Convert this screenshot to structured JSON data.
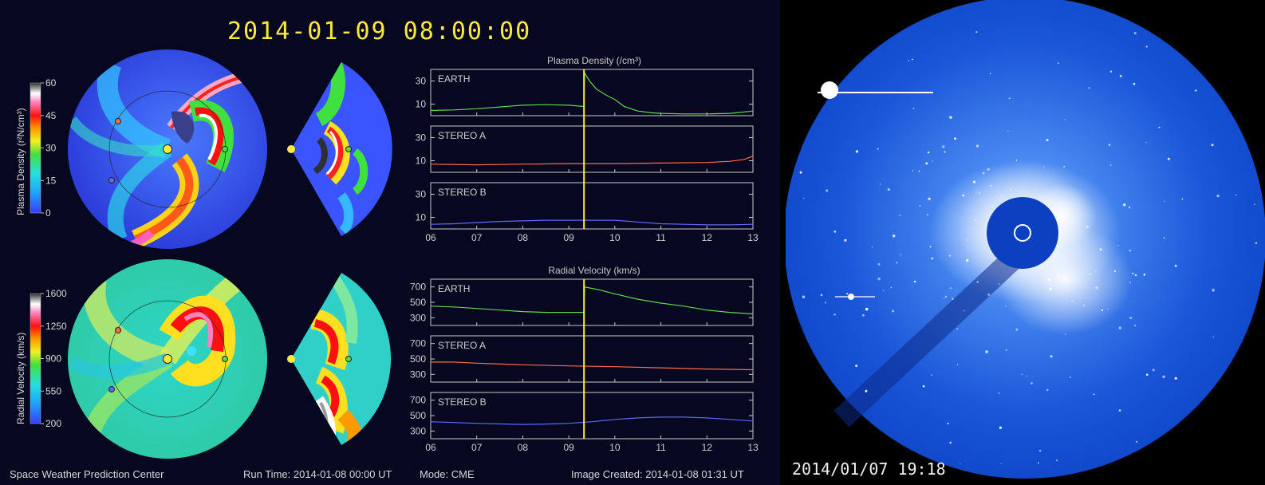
{
  "header": {
    "timestamp": "2014-01-09  08:00:00"
  },
  "footer": {
    "center": "Space Weather Prediction Center",
    "run_time": "Run Time: 2014-01-08 00:00 UT",
    "mode": "Mode: CME",
    "image_created": "Image Created: 2014-01-08 01:31 UT"
  },
  "colorbars": {
    "density": {
      "label": "Plasma Density (r²N/cm³)",
      "ticks": [
        "60",
        "45",
        "30",
        "15",
        "0"
      ]
    },
    "velocity": {
      "label": "Radial Velocity (km/s)",
      "ticks": [
        "1600",
        "1250",
        "900",
        "550",
        "200"
      ]
    }
  },
  "lasco": {
    "timestamp": "2014/01/07  19:18"
  },
  "colors": {
    "earth": "#63d64d",
    "stereo_a": "#ff6a4d",
    "stereo_b": "#6266ff",
    "marker": "#ffea3c"
  },
  "chart_data": [
    {
      "type": "line",
      "title": "Plasma Density (/cm³)",
      "x_ticks": [
        "06",
        "07",
        "08",
        "09",
        "10",
        "11",
        "12",
        "13"
      ],
      "xlim": [
        6,
        13
      ],
      "current_time_marker": 9.33,
      "panels": [
        {
          "name": "EARTH",
          "color": "#63d64d",
          "ylim": [
            0,
            40
          ],
          "y_ticks": [
            10,
            30
          ],
          "x": [
            6.0,
            6.5,
            7.0,
            7.5,
            8.0,
            8.5,
            9.0,
            9.3,
            9.33,
            9.34,
            9.45,
            9.6,
            9.8,
            10.0,
            10.2,
            10.5,
            10.8,
            11.0,
            11.5,
            12.0,
            12.5,
            13.0
          ],
          "y": [
            4.5,
            5,
            6,
            7.5,
            9,
            9.5,
            9,
            8,
            8,
            37,
            30,
            23,
            18,
            14,
            8,
            4,
            2.5,
            2,
            1.5,
            1.5,
            2,
            4
          ]
        },
        {
          "name": "STEREO A",
          "color": "#ff6a4d",
          "ylim": [
            0,
            40
          ],
          "y_ticks": [
            10,
            30
          ],
          "x": [
            6.0,
            7.0,
            8.0,
            9.0,
            10.0,
            11.0,
            12.0,
            12.5,
            12.8,
            13.0
          ],
          "y": [
            7,
            6.5,
            7,
            7.5,
            7.5,
            8,
            8.5,
            9.5,
            11,
            14
          ]
        },
        {
          "name": "STEREO B",
          "color": "#6266ff",
          "ylim": [
            0,
            40
          ],
          "y_ticks": [
            10,
            30
          ],
          "x": [
            6.0,
            6.5,
            7.0,
            7.5,
            8.0,
            8.5,
            9.0,
            9.5,
            10.0,
            10.5,
            11.0,
            11.5,
            12.0,
            12.5,
            13.0
          ],
          "y": [
            4,
            4.5,
            5.5,
            6.5,
            7,
            7.5,
            7.5,
            7.5,
            7.5,
            6,
            4.5,
            4,
            3.5,
            3.5,
            4
          ]
        }
      ]
    },
    {
      "type": "line",
      "title": "Radial Velocity (km/s)",
      "x_ticks": [
        "06",
        "07",
        "08",
        "09",
        "10",
        "11",
        "12",
        "13"
      ],
      "xlim": [
        6,
        13
      ],
      "current_time_marker": 9.33,
      "panels": [
        {
          "name": "EARTH",
          "color": "#63d64d",
          "ylim": [
            200,
            800
          ],
          "y_ticks": [
            300,
            500,
            700
          ],
          "x": [
            6.0,
            6.5,
            7.0,
            7.5,
            8.0,
            8.5,
            9.0,
            9.3,
            9.33,
            9.34,
            9.6,
            10.0,
            10.5,
            11.0,
            11.5,
            12.0,
            12.5,
            13.0
          ],
          "y": [
            450,
            440,
            420,
            400,
            380,
            370,
            370,
            370,
            370,
            700,
            670,
            610,
            540,
            490,
            450,
            400,
            370,
            350
          ]
        },
        {
          "name": "STEREO A",
          "color": "#ff6a4d",
          "ylim": [
            200,
            800
          ],
          "y_ticks": [
            300,
            500,
            700
          ],
          "x": [
            6.0,
            6.5,
            7.0,
            8.0,
            9.0,
            10.0,
            11.0,
            12.0,
            13.0
          ],
          "y": [
            460,
            460,
            445,
            425,
            410,
            400,
            385,
            370,
            360
          ]
        },
        {
          "name": "STEREO B",
          "color": "#6266ff",
          "ylim": [
            200,
            800
          ],
          "y_ticks": [
            300,
            500,
            700
          ],
          "x": [
            6.0,
            7.0,
            8.0,
            8.5,
            9.0,
            9.5,
            10.0,
            10.5,
            11.0,
            11.5,
            12.0,
            12.5,
            13.0
          ],
          "y": [
            420,
            400,
            385,
            390,
            400,
            420,
            450,
            470,
            480,
            480,
            470,
            450,
            430
          ]
        }
      ]
    }
  ]
}
